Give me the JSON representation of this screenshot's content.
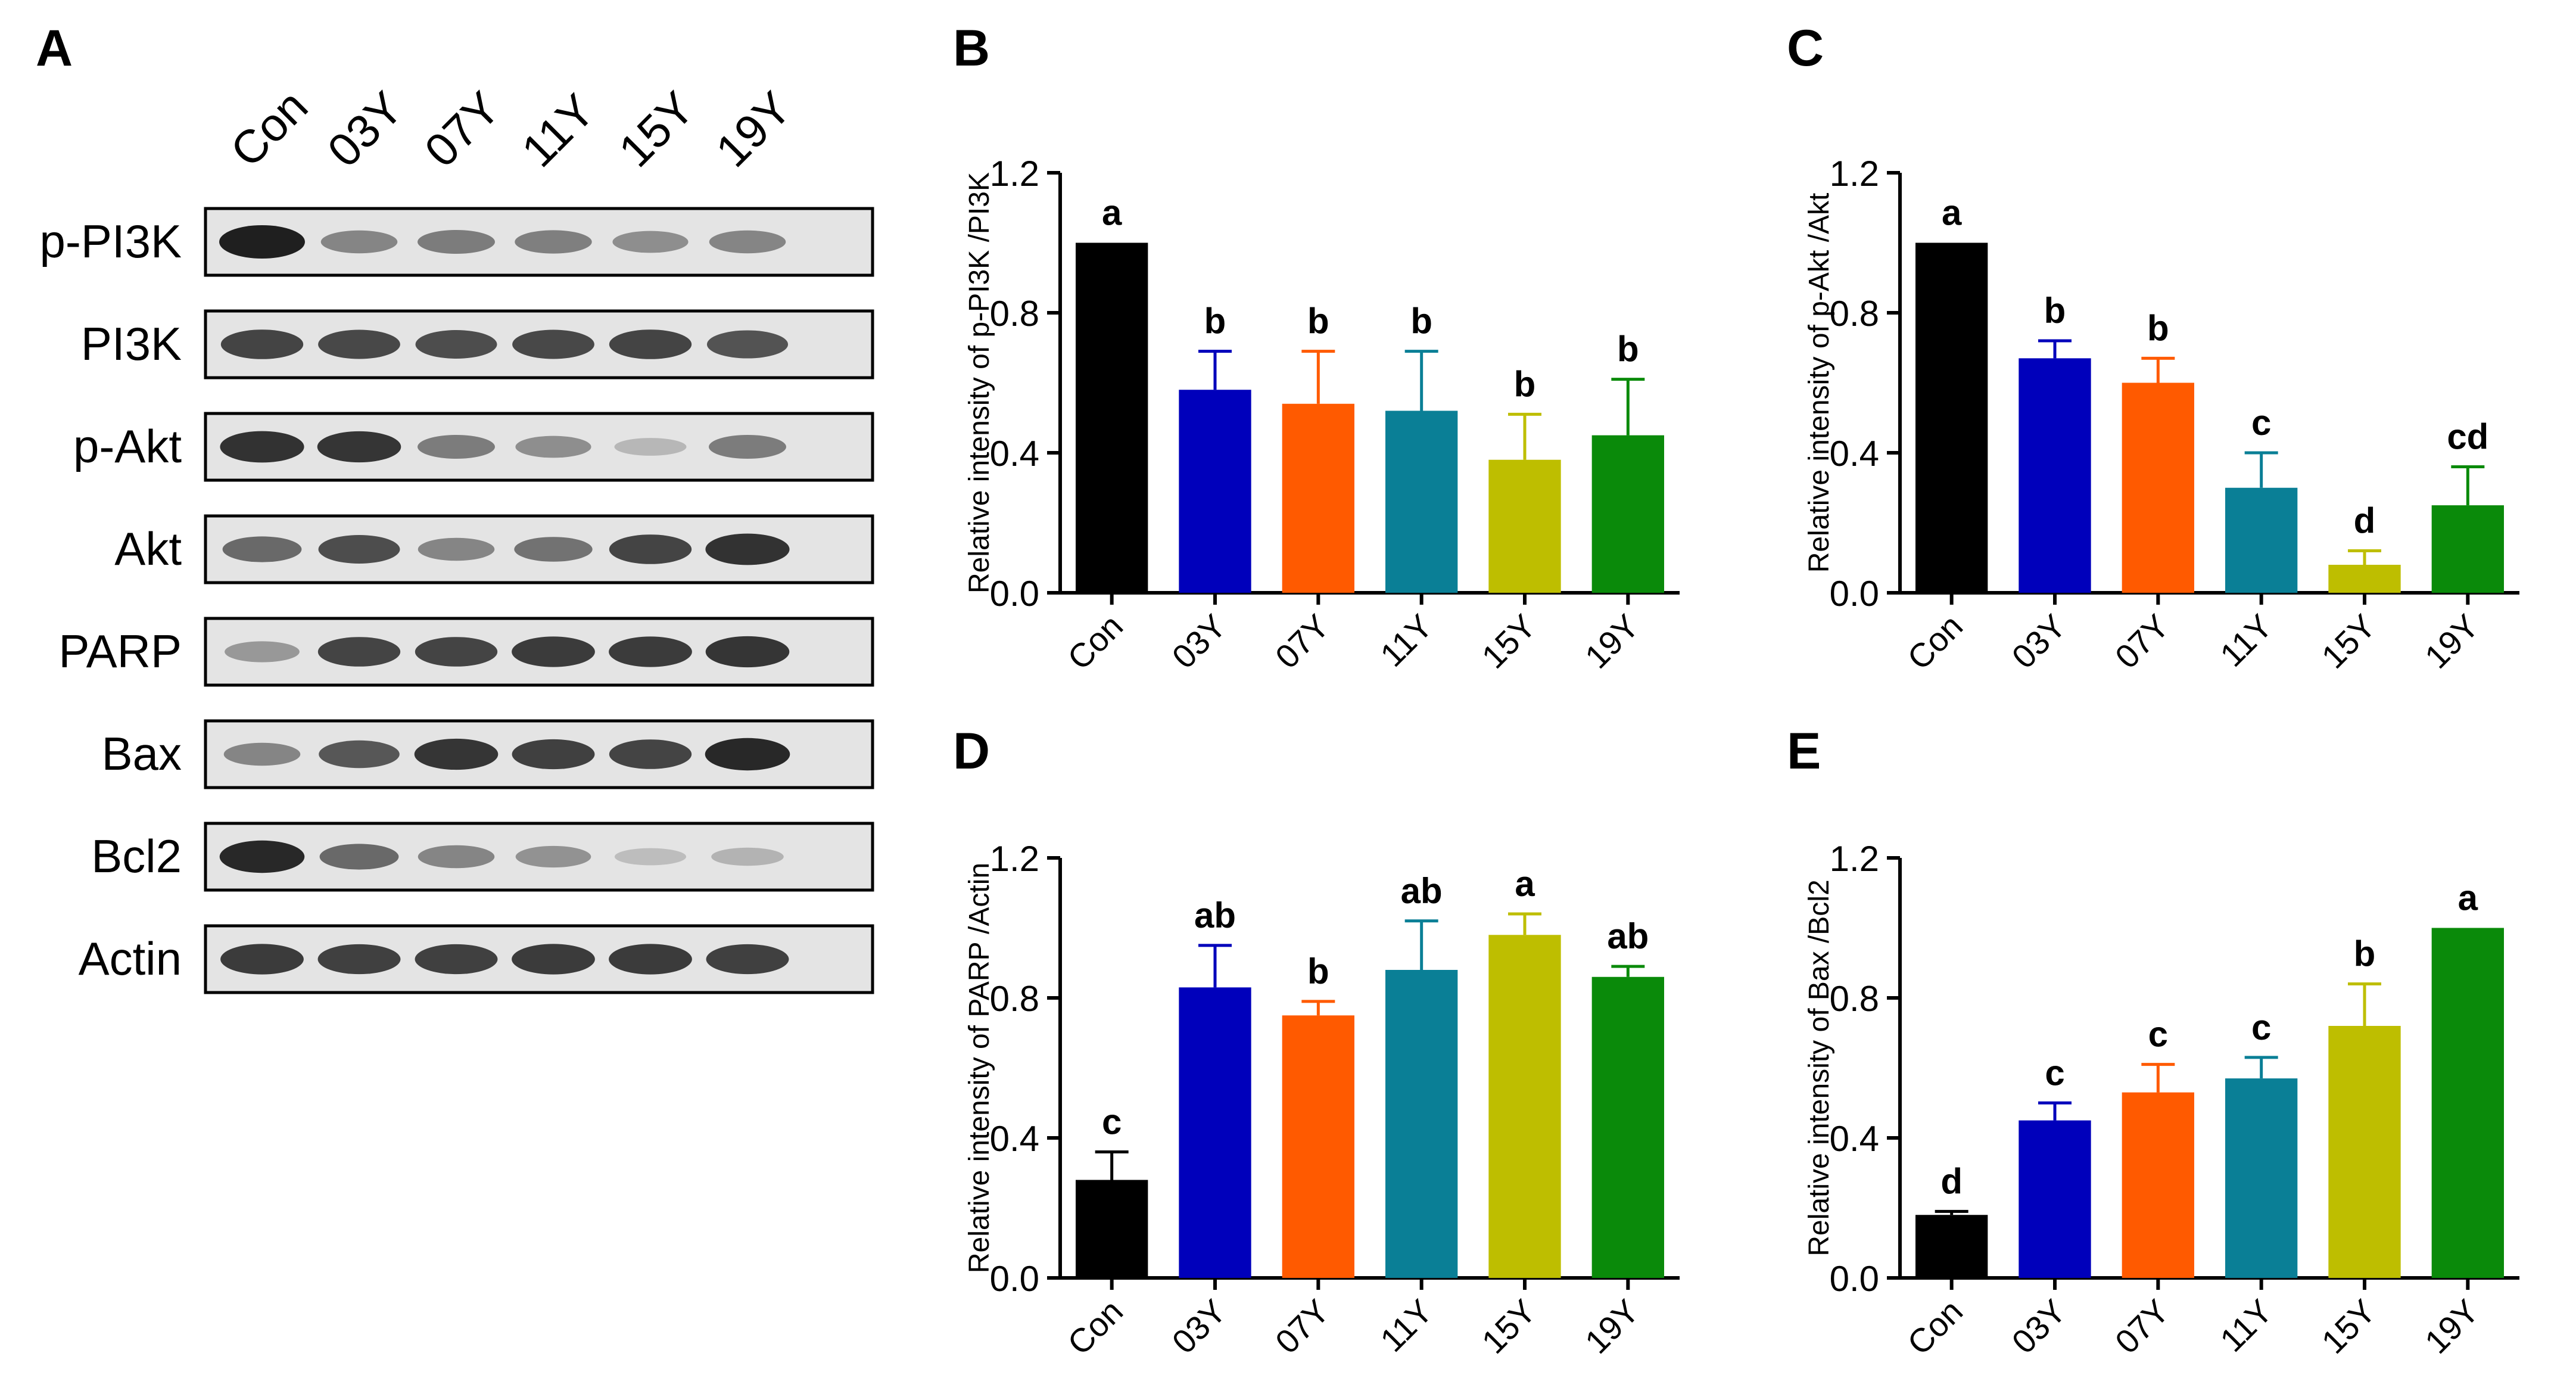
{
  "panels": {
    "A": "A",
    "B": "B",
    "C": "C",
    "D": "D",
    "E": "E"
  },
  "blot": {
    "lanes": [
      "Con",
      "03Y",
      "07Y",
      "11Y",
      "15Y",
      "19Y"
    ],
    "proteins": [
      {
        "name": "p-PI3K",
        "intensities": [
          1.0,
          0.45,
          0.5,
          0.48,
          0.4,
          0.45
        ]
      },
      {
        "name": "PI3K",
        "intensities": [
          0.8,
          0.78,
          0.75,
          0.78,
          0.8,
          0.72
        ]
      },
      {
        "name": "p-Akt",
        "intensities": [
          0.9,
          0.88,
          0.5,
          0.4,
          0.18,
          0.5
        ]
      },
      {
        "name": "Akt",
        "intensities": [
          0.6,
          0.75,
          0.45,
          0.55,
          0.8,
          0.9
        ]
      },
      {
        "name": "PARP",
        "intensities": [
          0.35,
          0.8,
          0.8,
          0.85,
          0.85,
          0.88
        ]
      },
      {
        "name": "Bax",
        "intensities": [
          0.45,
          0.7,
          0.88,
          0.82,
          0.8,
          0.95
        ]
      },
      {
        "name": "Bcl2",
        "intensities": [
          0.95,
          0.6,
          0.45,
          0.38,
          0.15,
          0.2
        ]
      },
      {
        "name": "Actin",
        "intensities": [
          0.85,
          0.82,
          0.82,
          0.85,
          0.85,
          0.82
        ]
      }
    ]
  },
  "colors": {
    "Con": "#000000",
    "03Y": "#0000bb",
    "07Y": "#ff5a00",
    "11Y": "#0a7f96",
    "15Y": "#bebe00",
    "19Y": "#0a8a0a"
  },
  "chart_data": [
    {
      "panel": "B",
      "type": "bar",
      "categories": [
        "Con",
        "03Y",
        "07Y",
        "11Y",
        "15Y",
        "19Y"
      ],
      "values": [
        1.0,
        0.58,
        0.54,
        0.52,
        0.38,
        0.45
      ],
      "errors": [
        0,
        0.11,
        0.15,
        0.17,
        0.13,
        0.16
      ],
      "letters": [
        "a",
        "b",
        "b",
        "b",
        "b",
        "b"
      ],
      "ylabel": "Relative intensity of p-PI3K /PI3K",
      "ylim": [
        0,
        1.2
      ],
      "yticks": [
        "0.0",
        "0.4",
        "0.8",
        "1.2"
      ]
    },
    {
      "panel": "C",
      "type": "bar",
      "categories": [
        "Con",
        "03Y",
        "07Y",
        "11Y",
        "15Y",
        "19Y"
      ],
      "values": [
        1.0,
        0.67,
        0.6,
        0.3,
        0.08,
        0.25
      ],
      "errors": [
        0,
        0.05,
        0.07,
        0.1,
        0.04,
        0.11
      ],
      "letters": [
        "a",
        "b",
        "b",
        "c",
        "d",
        "cd"
      ],
      "ylabel": "Relative intensity of p-Akt /Akt",
      "ylim": [
        0,
        1.2
      ],
      "yticks": [
        "0.0",
        "0.4",
        "0.8",
        "1.2"
      ]
    },
    {
      "panel": "D",
      "type": "bar",
      "categories": [
        "Con",
        "03Y",
        "07Y",
        "11Y",
        "15Y",
        "19Y"
      ],
      "values": [
        0.28,
        0.83,
        0.75,
        0.88,
        0.98,
        0.86
      ],
      "errors": [
        0.08,
        0.12,
        0.04,
        0.14,
        0.06,
        0.03
      ],
      "letters": [
        "c",
        "ab",
        "b",
        "ab",
        "a",
        "ab"
      ],
      "ylabel": "Relative intensity of PARP /Actin",
      "ylim": [
        0,
        1.2
      ],
      "yticks": [
        "0.0",
        "0.4",
        "0.8",
        "1.2"
      ]
    },
    {
      "panel": "E",
      "type": "bar",
      "categories": [
        "Con",
        "03Y",
        "07Y",
        "11Y",
        "15Y",
        "19Y"
      ],
      "values": [
        0.18,
        0.45,
        0.53,
        0.57,
        0.72,
        1.0
      ],
      "errors": [
        0.01,
        0.05,
        0.08,
        0.06,
        0.12,
        0
      ],
      "letters": [
        "d",
        "c",
        "c",
        "c",
        "b",
        "a"
      ],
      "ylabel": "Relative intensity of Bax /Bcl2",
      "ylim": [
        0,
        1.2
      ],
      "yticks": [
        "0.0",
        "0.4",
        "0.8",
        "1.2"
      ]
    }
  ]
}
